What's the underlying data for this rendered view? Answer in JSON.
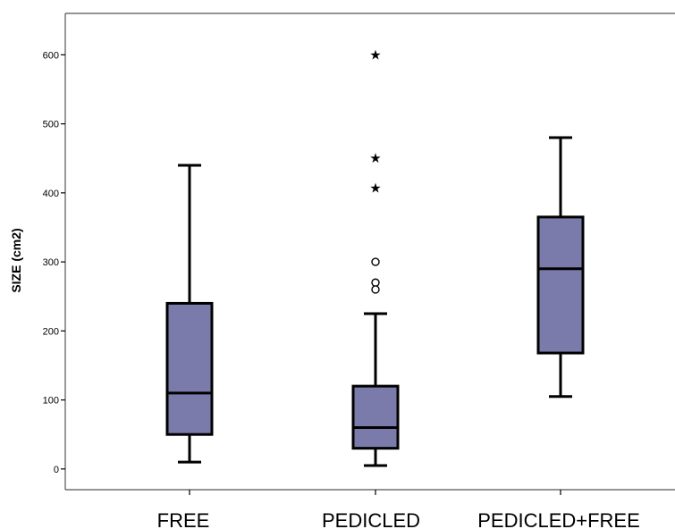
{
  "chart_data": {
    "type": "box",
    "title": "",
    "xlabel": "",
    "ylabel": "SIZE (cm2)",
    "ylim": [
      -30,
      660
    ],
    "yticks": [
      0,
      100,
      200,
      300,
      400,
      500,
      600
    ],
    "ytick_labels": [
      "0",
      "100",
      "200",
      "300",
      "400",
      "500",
      "600"
    ],
    "grid": false,
    "box_color": "#7b7bab",
    "line_color": "#000000",
    "groups": [
      {
        "label": "FREE",
        "whisker_low": 10,
        "q1": 50,
        "median": 110,
        "q3": 240,
        "whisker_high": 440,
        "outliers": [],
        "extremes": []
      },
      {
        "label": "PEDICLED",
        "whisker_low": 5,
        "q1": 30,
        "median": 60,
        "q3": 120,
        "whisker_high": 225,
        "outliers": [
          300,
          270,
          260
        ],
        "extremes": [
          600,
          450,
          407
        ]
      },
      {
        "label": "PEDICLED+FREE",
        "whisker_low": 105,
        "q1": 168,
        "median": 290,
        "q3": 365,
        "whisker_high": 480,
        "outliers": [],
        "extremes": []
      }
    ]
  }
}
